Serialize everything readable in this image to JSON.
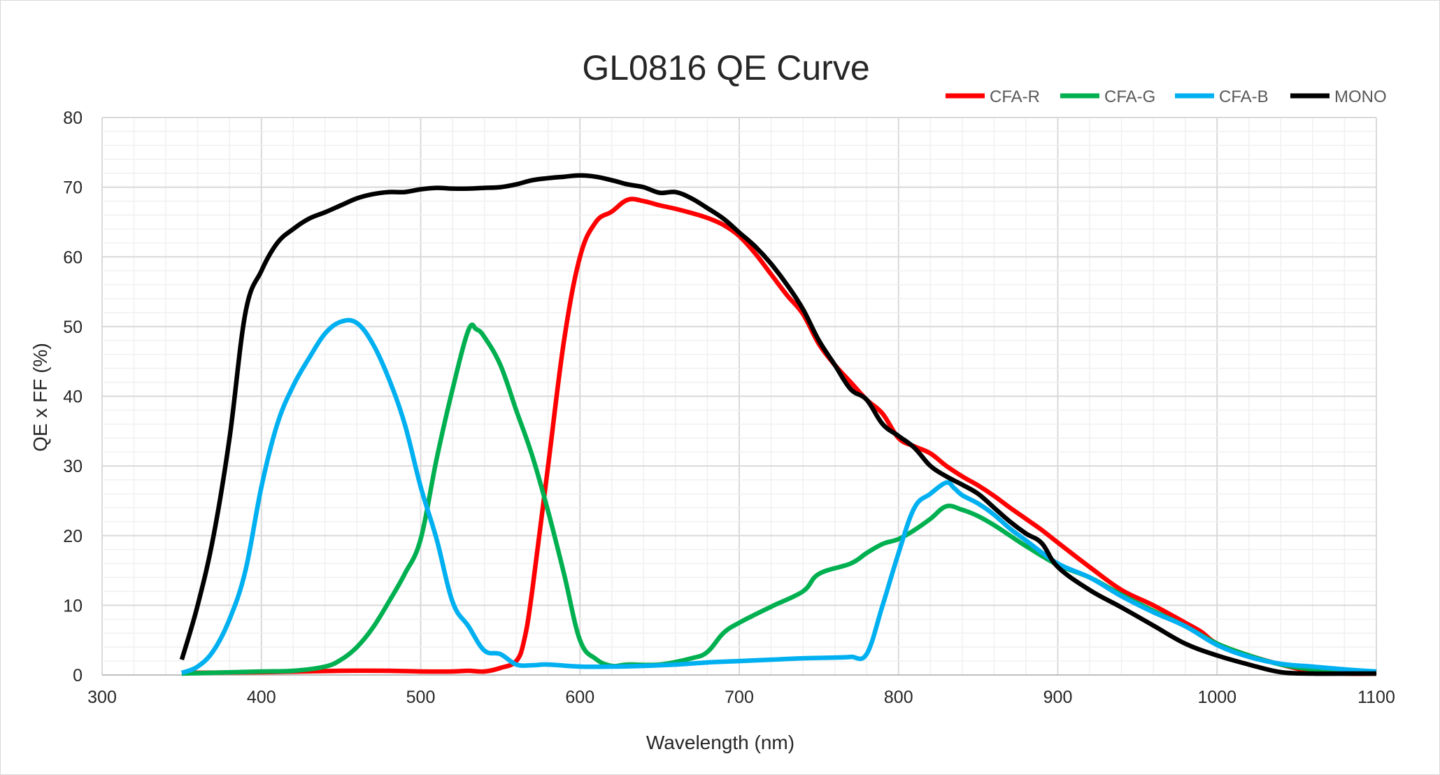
{
  "chart_data": {
    "type": "line",
    "title": "GL0816 QE Curve",
    "xlabel": "Wavelength (nm)",
    "ylabel": "QE x FF (%)",
    "xlim": [
      300,
      1100
    ],
    "ylim": [
      0,
      80
    ],
    "x_ticks": [
      300,
      400,
      500,
      600,
      700,
      800,
      900,
      1000,
      1100
    ],
    "y_ticks": [
      0,
      10,
      20,
      30,
      40,
      50,
      60,
      70,
      80
    ],
    "grid": true,
    "legend_position": "top-right",
    "series": [
      {
        "name": "CFA-R",
        "color": "#ff0000",
        "x": [
          350,
          400,
          450,
          480,
          500,
          520,
          530,
          540,
          550,
          560,
          565,
          570,
          580,
          590,
          600,
          610,
          620,
          630,
          640,
          650,
          660,
          670,
          680,
          690,
          700,
          710,
          720,
          730,
          740,
          750,
          760,
          770,
          780,
          790,
          800,
          810,
          820,
          830,
          840,
          850,
          860,
          870,
          880,
          890,
          900,
          920,
          940,
          960,
          980,
          990,
          1000,
          1020,
          1040,
          1060,
          1080,
          1100
        ],
        "y": [
          0.3,
          0.4,
          0.6,
          0.6,
          0.5,
          0.5,
          0.6,
          0.5,
          1.0,
          2.0,
          5.0,
          12.0,
          30.0,
          48.0,
          60.0,
          65.0,
          66.5,
          68.2,
          68.0,
          67.4,
          66.9,
          66.3,
          65.6,
          64.6,
          63.0,
          60.5,
          57.5,
          54.5,
          51.8,
          47.5,
          44.5,
          42.0,
          39.5,
          37.5,
          34.0,
          32.8,
          31.8,
          30.0,
          28.5,
          27.2,
          25.7,
          24.0,
          22.4,
          20.8,
          19.0,
          15.5,
          12.2,
          10.0,
          7.5,
          6.2,
          4.5,
          2.8,
          1.5,
          0.5,
          0.2,
          0.2
        ]
      },
      {
        "name": "CFA-G",
        "color": "#00b050",
        "x": [
          350,
          400,
          420,
          440,
          450,
          460,
          470,
          480,
          490,
          500,
          510,
          520,
          530,
          535,
          540,
          550,
          560,
          570,
          580,
          590,
          600,
          610,
          620,
          630,
          650,
          670,
          680,
          690,
          700,
          720,
          740,
          750,
          770,
          780,
          790,
          800,
          810,
          820,
          830,
          840,
          850,
          860,
          870,
          880,
          900,
          920,
          940,
          960,
          980,
          1000,
          1020,
          1040,
          1060,
          1080,
          1100
        ],
        "y": [
          0.2,
          0.5,
          0.6,
          1.2,
          2.2,
          4.0,
          6.8,
          10.5,
          14.5,
          19.5,
          31.0,
          41.0,
          49.5,
          49.6,
          48.5,
          44.5,
          38.0,
          31.5,
          23.5,
          14.5,
          5.0,
          2.3,
          1.3,
          1.5,
          1.5,
          2.4,
          3.3,
          6.0,
          7.5,
          9.8,
          12.0,
          14.5,
          16.0,
          17.5,
          18.8,
          19.5,
          20.8,
          22.4,
          24.2,
          23.7,
          22.8,
          21.5,
          20.0,
          18.5,
          15.8,
          14.0,
          11.5,
          9.2,
          7.0,
          4.5,
          2.8,
          1.5,
          0.8,
          0.5,
          0.4
        ]
      },
      {
        "name": "CFA-B",
        "color": "#00b0f0",
        "x": [
          350,
          360,
          370,
          380,
          390,
          400,
          410,
          420,
          430,
          440,
          450,
          460,
          470,
          480,
          490,
          500,
          510,
          520,
          530,
          540,
          550,
          560,
          570,
          580,
          600,
          620,
          640,
          660,
          680,
          700,
          720,
          740,
          760,
          770,
          780,
          790,
          800,
          810,
          820,
          830,
          835,
          840,
          850,
          860,
          870,
          880,
          900,
          920,
          940,
          960,
          980,
          1000,
          1020,
          1040,
          1060,
          1080,
          1100
        ],
        "y": [
          0.3,
          1.2,
          3.5,
          8.0,
          15.0,
          27.0,
          36.0,
          41.5,
          45.5,
          49.0,
          50.7,
          50.5,
          47.5,
          42.5,
          36.0,
          27.0,
          19.5,
          10.5,
          7.0,
          3.5,
          3.0,
          1.5,
          1.4,
          1.5,
          1.2,
          1.2,
          1.3,
          1.5,
          1.8,
          2.0,
          2.2,
          2.4,
          2.5,
          2.6,
          3.0,
          10.0,
          17.5,
          24.0,
          26.0,
          27.6,
          26.8,
          25.8,
          24.6,
          23.0,
          21.0,
          19.3,
          16.0,
          14.0,
          11.3,
          9.0,
          7.0,
          4.3,
          2.6,
          1.6,
          1.2,
          0.8,
          0.5
        ]
      },
      {
        "name": "MONO",
        "color": "#000000",
        "x": [
          350,
          360,
          370,
          380,
          390,
          400,
          410,
          420,
          430,
          440,
          450,
          460,
          470,
          480,
          490,
          500,
          510,
          520,
          530,
          540,
          550,
          560,
          570,
          580,
          590,
          600,
          610,
          620,
          630,
          640,
          650,
          660,
          670,
          680,
          690,
          700,
          710,
          720,
          730,
          740,
          750,
          760,
          770,
          780,
          790,
          800,
          810,
          820,
          830,
          840,
          850,
          860,
          870,
          880,
          890,
          900,
          920,
          940,
          960,
          980,
          1000,
          1020,
          1040,
          1060,
          1080,
          1100
        ],
        "y": [
          2.2,
          10.0,
          20.0,
          34.0,
          52.0,
          58.0,
          62.0,
          64.0,
          65.5,
          66.4,
          67.4,
          68.4,
          69.0,
          69.3,
          69.3,
          69.7,
          69.9,
          69.8,
          69.8,
          69.9,
          70.0,
          70.4,
          71.0,
          71.3,
          71.5,
          71.7,
          71.5,
          71.0,
          70.4,
          70.0,
          69.2,
          69.3,
          68.4,
          67.0,
          65.5,
          63.5,
          61.5,
          59.0,
          56.0,
          52.5,
          48.0,
          44.5,
          41.0,
          39.5,
          36.0,
          34.3,
          32.6,
          30.0,
          28.5,
          27.3,
          26.0,
          24.0,
          22.0,
          20.3,
          18.9,
          15.5,
          12.2,
          9.7,
          7.1,
          4.5,
          2.8,
          1.5,
          0.4,
          0.2,
          0.2,
          0.2
        ]
      }
    ]
  }
}
